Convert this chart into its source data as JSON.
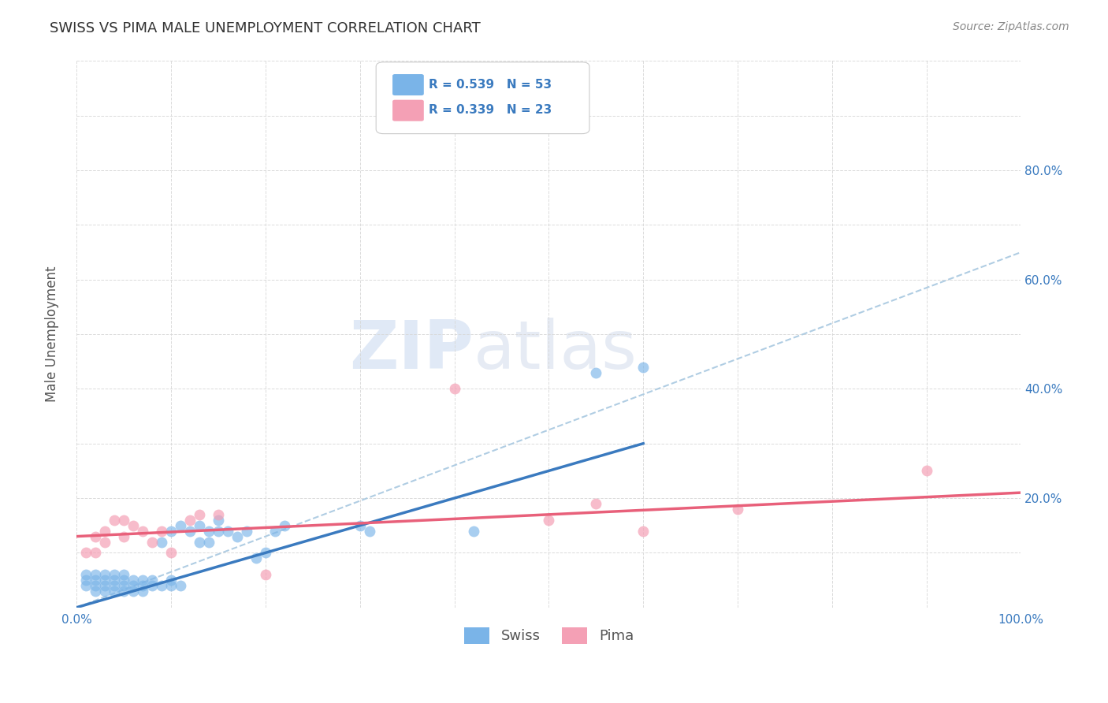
{
  "title": "SWISS VS PIMA MALE UNEMPLOYMENT CORRELATION CHART",
  "source": "Source: ZipAtlas.com",
  "ylabel": "Male Unemployment",
  "xlim": [
    0,
    100
  ],
  "ylim": [
    0,
    100
  ],
  "swiss_color": "#7ab4e8",
  "pima_color": "#f4a0b5",
  "swiss_line_color": "#3a7abf",
  "pima_line_color": "#e8607a",
  "diag_line_color": "#a8c8e0",
  "r_swiss": 0.539,
  "n_swiss": 53,
  "r_pima": 0.339,
  "n_pima": 23,
  "legend_r_color": "#3a7abf",
  "background_color": "#ffffff",
  "grid_color": "#d8d8d8",
  "swiss_x": [
    1,
    1,
    1,
    2,
    2,
    2,
    2,
    3,
    3,
    3,
    3,
    4,
    4,
    4,
    4,
    5,
    5,
    5,
    5,
    6,
    6,
    6,
    7,
    7,
    7,
    8,
    8,
    9,
    9,
    10,
    10,
    10,
    11,
    11,
    12,
    13,
    13,
    14,
    14,
    15,
    15,
    16,
    17,
    18,
    19,
    20,
    21,
    22,
    30,
    31,
    42,
    55,
    60
  ],
  "swiss_y": [
    4,
    5,
    6,
    3,
    4,
    5,
    6,
    3,
    4,
    5,
    6,
    3,
    4,
    5,
    6,
    3,
    4,
    5,
    6,
    3,
    4,
    5,
    3,
    4,
    5,
    4,
    5,
    4,
    12,
    4,
    5,
    14,
    4,
    15,
    14,
    12,
    15,
    14,
    12,
    16,
    14,
    14,
    13,
    14,
    9,
    10,
    14,
    15,
    15,
    14,
    14,
    43,
    44
  ],
  "pima_x": [
    1,
    2,
    2,
    3,
    3,
    4,
    5,
    5,
    6,
    7,
    8,
    9,
    10,
    12,
    13,
    15,
    20,
    40,
    50,
    55,
    60,
    70,
    90
  ],
  "pima_y": [
    10,
    10,
    13,
    12,
    14,
    16,
    13,
    16,
    15,
    14,
    12,
    14,
    10,
    16,
    17,
    17,
    6,
    40,
    16,
    19,
    14,
    18,
    25
  ],
  "swiss_trendline_x": [
    0,
    60
  ],
  "swiss_trendline_y": [
    0,
    30
  ],
  "pima_trendline_x": [
    0,
    100
  ],
  "pima_trendline_y": [
    13,
    21
  ],
  "diag_trendline_x": [
    0,
    100
  ],
  "diag_trendline_y": [
    0,
    65
  ],
  "watermark_zip": "ZIP",
  "watermark_atlas": "atlas",
  "marker_size": 100
}
